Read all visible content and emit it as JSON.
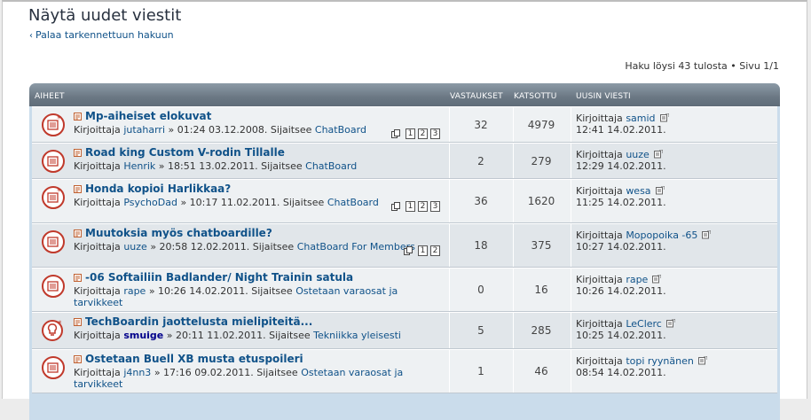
{
  "page": {
    "title": "Näytä uudet viestit",
    "back_link": "Palaa tarkennettuun hakuun",
    "search_info": "Haku löysi 43 tulosta • Sivu 1/1"
  },
  "columns": {
    "topics": "AIHEET",
    "replies": "VASTAUKSET",
    "views": "KATSOTTU",
    "latest": "UUSIN VIESTI"
  },
  "rows": [
    {
      "title": "Mp-aiheiset elokuvat",
      "by_prefix": "Kirjoittaja",
      "author": "jutaharri",
      "date": "» 01:24 03.12.2008. Sijaitsee",
      "forum": "ChatBoard",
      "forum2": "",
      "pages": [
        "1",
        "2",
        "3"
      ],
      "replies": "32",
      "views": "4979",
      "latest_prefix": "Kirjoittaja",
      "latest_author": "samid",
      "latest_time": "12:41 14.02.2011.",
      "icon": "hot"
    },
    {
      "title": "Road king Custom V-rodin Tillalle",
      "by_prefix": "Kirjoittaja",
      "author": "Henrik",
      "date": "» 18:51 13.02.2011. Sijaitsee",
      "forum": "ChatBoard",
      "forum2": "",
      "pages": [],
      "replies": "2",
      "views": "279",
      "latest_prefix": "Kirjoittaja",
      "latest_author": "uuze",
      "latest_time": "12:29 14.02.2011.",
      "icon": "normal"
    },
    {
      "title": "Honda kopioi Harlikkaa?",
      "by_prefix": "Kirjoittaja",
      "author": "PsychoDad",
      "date": "» 10:17 11.02.2011. Sijaitsee",
      "forum": "ChatBoard",
      "forum2": "",
      "pages": [
        "1",
        "2",
        "3"
      ],
      "replies": "36",
      "views": "1620",
      "latest_prefix": "Kirjoittaja",
      "latest_author": "wesa",
      "latest_time": "11:25 14.02.2011.",
      "icon": "hot"
    },
    {
      "title": "Muutoksia myös chatboardille?",
      "by_prefix": "Kirjoittaja",
      "author": "uuze",
      "date": "» 20:58 12.02.2011. Sijaitsee",
      "forum": "ChatBoard For Members",
      "forum2": "",
      "pages": [
        "1",
        "2"
      ],
      "replies": "18",
      "views": "375",
      "latest_prefix": "Kirjoittaja",
      "latest_author": "Mopopoika -65",
      "latest_time": "10:27 14.02.2011.",
      "icon": "normal"
    },
    {
      "title": "-06 Softailiin Badlander/ Night Trainin satula",
      "by_prefix": "Kirjoittaja",
      "author": "rape",
      "date": "» 10:26 14.02.2011. Sijaitsee",
      "forum": "Ostetaan varaosat ja tarvikkeet",
      "forum2": "",
      "pages": [],
      "replies": "0",
      "views": "16",
      "latest_prefix": "Kirjoittaja",
      "latest_author": "rape",
      "latest_time": "10:26 14.02.2011.",
      "icon": "normal"
    },
    {
      "title": "TechBoardin jaottelusta mielipiteitä...",
      "by_prefix": "Kirjoittaja",
      "author": "smuige",
      "date": "» 20:11 11.02.2011. Sijaitsee",
      "forum": "Tekniikka yleisesti",
      "forum2": "",
      "pages": [],
      "replies": "5",
      "views": "285",
      "latest_prefix": "Kirjoittaja",
      "latest_author": "LeClerc",
      "latest_time": "10:25 14.02.2011.",
      "icon": "bulb",
      "author_strong": true
    },
    {
      "title": "Ostetaan Buell XB musta etuspoileri",
      "by_prefix": "Kirjoittaja",
      "author": "j4nn3",
      "date": "» 17:16 09.02.2011. Sijaitsee",
      "forum": "Ostetaan varaosat ja tarvikkeet",
      "forum2": "",
      "pages": [],
      "replies": "1",
      "views": "46",
      "latest_prefix": "Kirjoittaja",
      "latest_author": "topi ryynänen",
      "latest_time": "08:54 14.02.2011.",
      "icon": "normal"
    }
  ],
  "colors": {
    "link": "#105289",
    "header_bg": "#6b7884",
    "panel_bg": "#cadceb",
    "icon_red": "#c0392b"
  }
}
